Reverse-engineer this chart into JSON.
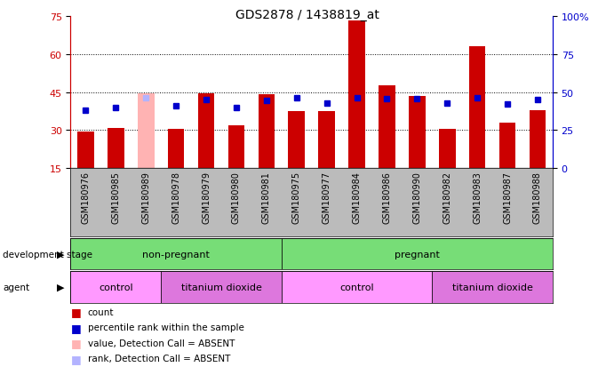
{
  "title": "GDS2878 / 1438819_at",
  "samples": [
    "GSM180976",
    "GSM180985",
    "GSM180989",
    "GSM180978",
    "GSM180979",
    "GSM180980",
    "GSM180981",
    "GSM180975",
    "GSM180977",
    "GSM180984",
    "GSM180986",
    "GSM180990",
    "GSM180982",
    "GSM180983",
    "GSM180987",
    "GSM180988"
  ],
  "bar_values": [
    29.5,
    31.0,
    44.5,
    30.5,
    44.5,
    32.0,
    44.0,
    37.5,
    37.5,
    73.0,
    47.5,
    43.5,
    30.5,
    63.0,
    33.0,
    38.0
  ],
  "bar_colors": [
    "#cc0000",
    "#cc0000",
    "#ffb3b3",
    "#cc0000",
    "#cc0000",
    "#cc0000",
    "#cc0000",
    "#cc0000",
    "#cc0000",
    "#cc0000",
    "#cc0000",
    "#cc0000",
    "#cc0000",
    "#cc0000",
    "#cc0000",
    "#cc0000"
  ],
  "rank_values": [
    38.0,
    40.0,
    46.0,
    41.0,
    45.0,
    40.0,
    44.5,
    46.5,
    43.0,
    46.0,
    45.5,
    45.5,
    43.0,
    46.0,
    42.0,
    45.0
  ],
  "rank_absent": [
    false,
    false,
    true,
    false,
    false,
    false,
    false,
    false,
    false,
    false,
    false,
    false,
    false,
    false,
    false,
    false
  ],
  "ylim_left": [
    15,
    75
  ],
  "ylim_right": [
    0,
    100
  ],
  "yticks_left": [
    15,
    30,
    45,
    60,
    75
  ],
  "yticks_right": [
    0,
    25,
    50,
    75,
    100
  ],
  "grid_values": [
    30,
    45,
    60
  ],
  "bar_width": 0.55,
  "axis_label_color_left": "#cc0000",
  "axis_label_color_right": "#0000cc",
  "legend_items": [
    {
      "label": "count",
      "color": "#cc0000"
    },
    {
      "label": "percentile rank within the sample",
      "color": "#0000cc"
    },
    {
      "label": "value, Detection Call = ABSENT",
      "color": "#ffb3b3"
    },
    {
      "label": "rank, Detection Call = ABSENT",
      "color": "#b3b3ff"
    }
  ],
  "dev_stage_groups": [
    {
      "label": "non-pregnant",
      "start": 0,
      "end": 7
    },
    {
      "label": "pregnant",
      "start": 7,
      "end": 16
    }
  ],
  "agent_groups": [
    {
      "label": "control",
      "start": 0,
      "end": 3,
      "color": "#ff99ff"
    },
    {
      "label": "titanium dioxide",
      "start": 3,
      "end": 7,
      "color": "#dd77dd"
    },
    {
      "label": "control",
      "start": 7,
      "end": 12,
      "color": "#ff99ff"
    },
    {
      "label": "titanium dioxide",
      "start": 12,
      "end": 16,
      "color": "#dd77dd"
    }
  ],
  "dev_color": "#77dd77",
  "sample_bg_color": "#bbbbbb"
}
